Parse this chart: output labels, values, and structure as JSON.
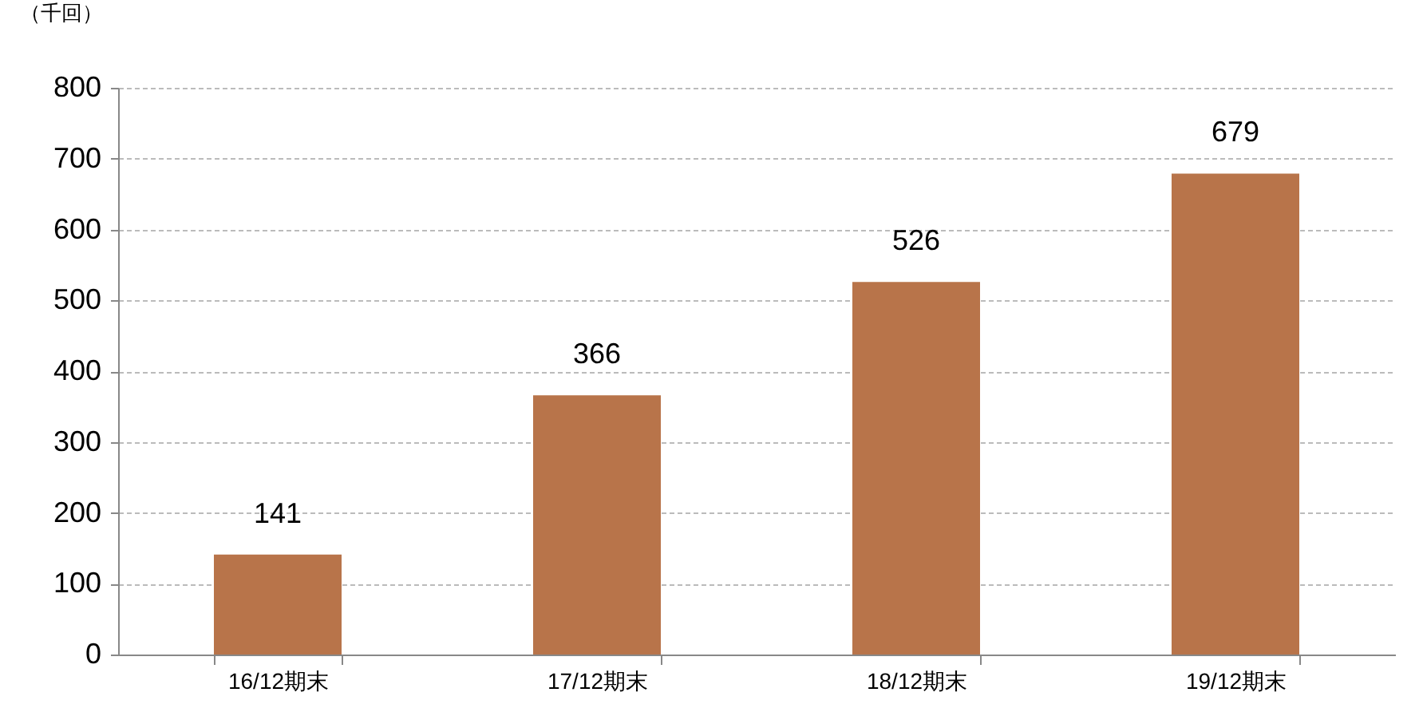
{
  "chart_data": {
    "type": "bar",
    "ylabel": "（千回）",
    "categories": [
      "16/12期末",
      "17/12期末",
      "18/12期末",
      "19/12期末"
    ],
    "values": [
      141,
      366,
      526,
      679
    ],
    "color": "#b8744a",
    "ylim": [
      0,
      800
    ],
    "yticks": [
      0,
      100,
      200,
      300,
      400,
      500,
      600,
      700,
      800
    ],
    "grid": "y",
    "data_labels": true
  }
}
